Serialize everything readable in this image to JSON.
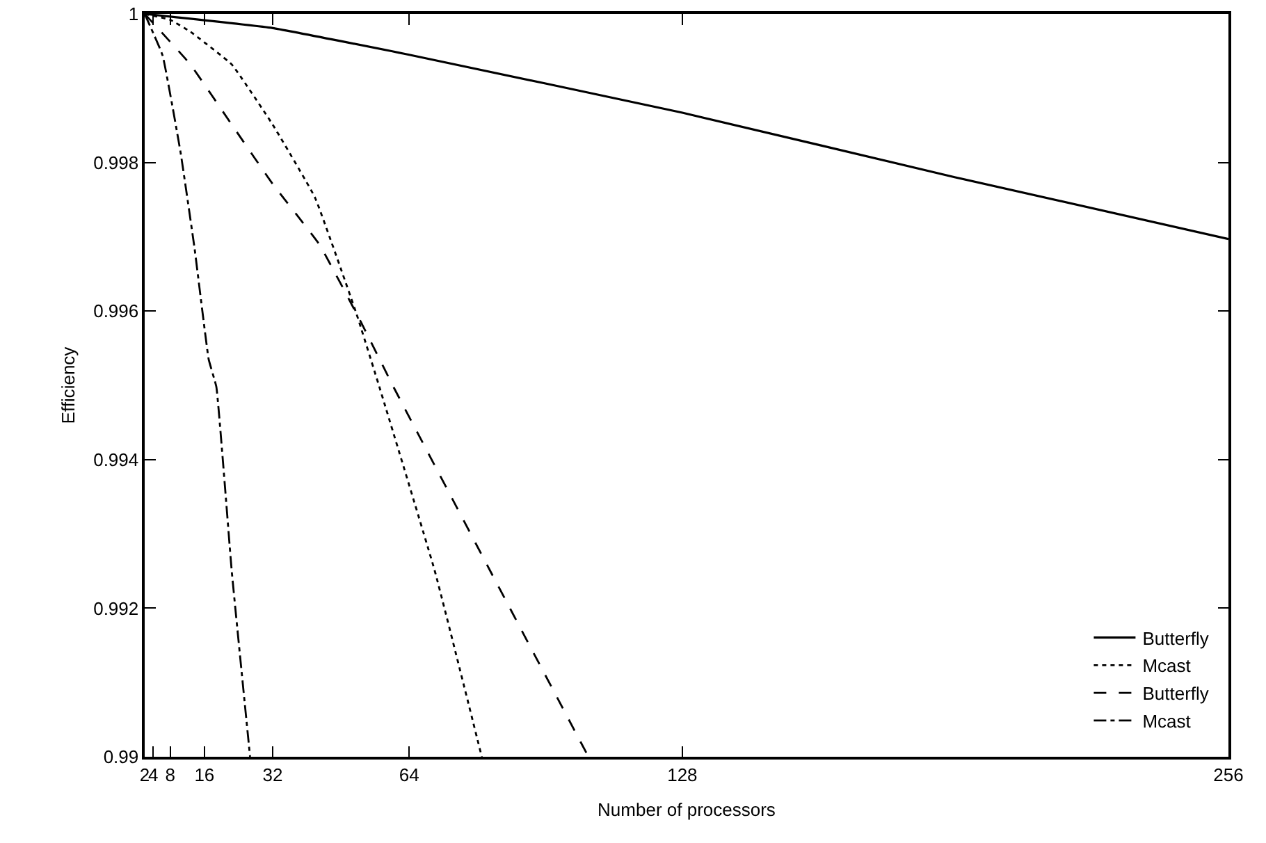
{
  "chart_data": {
    "type": "line",
    "xlabel": "Number of processors",
    "ylabel": "Efficiency",
    "xlim": [
      2,
      256
    ],
    "xticks": [
      2,
      4,
      8,
      16,
      32,
      64,
      128,
      256
    ],
    "ylim": [
      0.99,
      1
    ],
    "yticks": [
      0.99,
      0.992,
      0.994,
      0.996,
      0.998,
      1
    ],
    "grid": false,
    "legend": "bottom right",
    "marker": "none",
    "series": [
      {
        "name": "Butterfly",
        "color": "#000000",
        "line_style": "solid",
        "x": [
          2,
          32,
          64,
          128,
          192,
          256
        ],
        "values": [
          1,
          0.99981,
          0.99945,
          0.99867,
          0.9978,
          0.99697
        ]
      },
      {
        "name": "Mcast",
        "color": "#000000",
        "line_style": "dotted",
        "x": [
          2,
          8,
          12.7,
          22.4,
          32,
          41.9,
          51.6,
          57,
          70,
          81
        ],
        "values": [
          1,
          0.99992,
          0.99976,
          0.99932,
          0.99851,
          0.99753,
          0.99597,
          0.99498,
          0.9925,
          0.99
        ]
      },
      {
        "name": "Butterfly",
        "color": "#000000",
        "line_style": "dashed",
        "x": [
          2,
          12.7,
          22.4,
          32,
          42.9,
          52.7,
          60.3,
          83,
          106
        ],
        "values": [
          1,
          0.99932,
          0.99851,
          0.99771,
          0.9969,
          0.99585,
          0.99498,
          0.9925,
          0.99
        ]
      },
      {
        "name": "Mcast",
        "color": "#000000",
        "line_style": "dashdot",
        "x": [
          2,
          6.2,
          10.4,
          13.7,
          17,
          18.8,
          22.4,
          26.7
        ],
        "values": [
          1,
          0.99944,
          0.99814,
          0.99684,
          0.99535,
          0.99498,
          0.9925,
          0.99
        ]
      }
    ]
  }
}
